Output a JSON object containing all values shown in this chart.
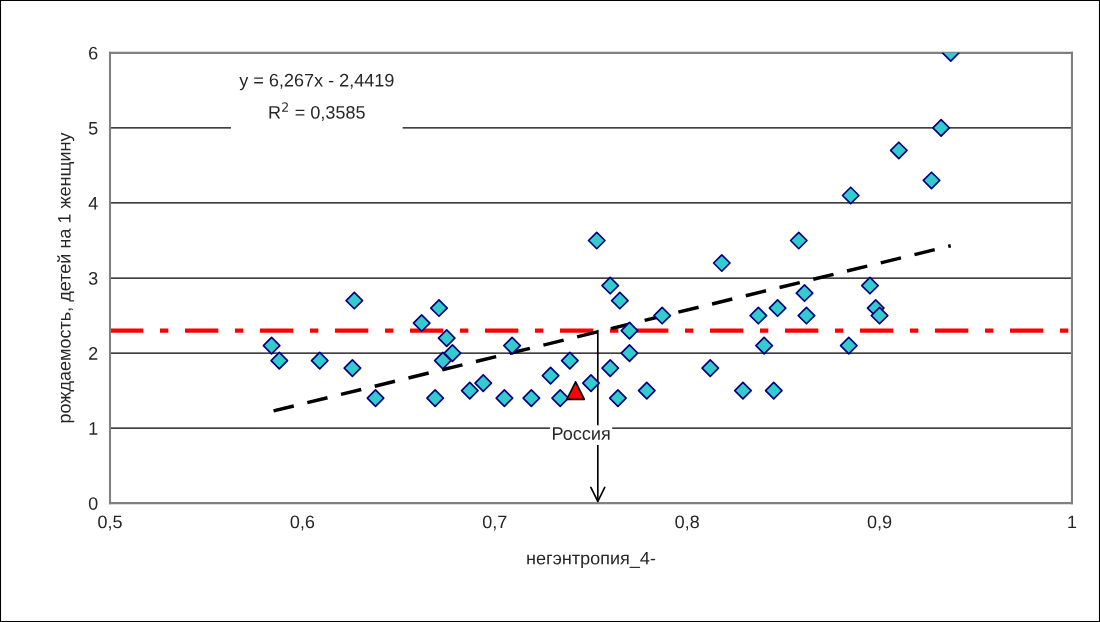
{
  "chart_data": {
    "type": "scatter",
    "xlabel": "негэнтропия_4-",
    "ylabel": "рождаемость, детей на 1 женщину",
    "xlim": [
      0.5,
      1
    ],
    "xticks": [
      {
        "value": 0.5,
        "label": "0,5"
      },
      {
        "value": 0.6,
        "label": "0,6"
      },
      {
        "value": 0.7,
        "label": "0,7"
      },
      {
        "value": 0.8,
        "label": "0,8"
      },
      {
        "value": 0.9,
        "label": "0,9"
      },
      1
    ],
    "ylim": [
      0,
      6
    ],
    "yticks": [
      0,
      1,
      2,
      3,
      4,
      5,
      6
    ],
    "grid": "y",
    "legend": false,
    "marker": "diamond",
    "series": [
      {
        "color": "#33cccc",
        "x": [
          0.584,
          0.588,
          0.609,
          0.627,
          0.626,
          0.638,
          0.662,
          0.671,
          0.675,
          0.673,
          0.678,
          0.669,
          0.687,
          0.694,
          0.705,
          0.709,
          0.719,
          0.729,
          0.739,
          0.734,
          0.75,
          0.753,
          0.76,
          0.765,
          0.76,
          0.764,
          0.77,
          0.77,
          0.779,
          0.787,
          0.818,
          0.812,
          0.829,
          0.837,
          0.84,
          0.845,
          0.847,
          0.858,
          0.861,
          0.862,
          0.884,
          0.895,
          0.898,
          0.9,
          0.885,
          0.91,
          0.927,
          0.932,
          0.937
        ],
        "values": [
          2.1,
          1.9,
          1.9,
          2.7,
          1.8,
          1.4,
          2.4,
          2.6,
          2.2,
          1.9,
          2.0,
          1.4,
          1.5,
          1.6,
          1.4,
          2.1,
          1.4,
          1.7,
          1.9,
          1.4,
          1.6,
          3.5,
          2.9,
          2.7,
          1.8,
          1.4,
          2.3,
          2.0,
          1.5,
          2.5,
          3.2,
          1.8,
          1.5,
          2.5,
          2.1,
          1.5,
          2.6,
          3.5,
          2.8,
          2.5,
          2.1,
          2.9,
          2.6,
          2.5,
          4.1,
          4.7,
          4.3,
          5.0,
          6.0
        ]
      },
      {
        "color": "#ff0000",
        "marker": "triangle",
        "x": [
          0.742
        ],
        "values": [
          1.5
        ]
      },
      {
        "type": "line",
        "color": "#000000",
        "line_style": "dashed",
        "marker": "none",
        "x": [
          0.585,
          0.937
        ],
        "values": [
          1.23,
          3.43
        ]
      }
    ],
    "ref_lines": [
      {
        "axis": "y",
        "value": 2.3,
        "color": "#ff0000",
        "line_style": "dashdot"
      }
    ],
    "annotations": [
      "y = 6,267x - 2,4419",
      "R$^{2}$ = 0,3585",
      "Россия"
    ]
  }
}
